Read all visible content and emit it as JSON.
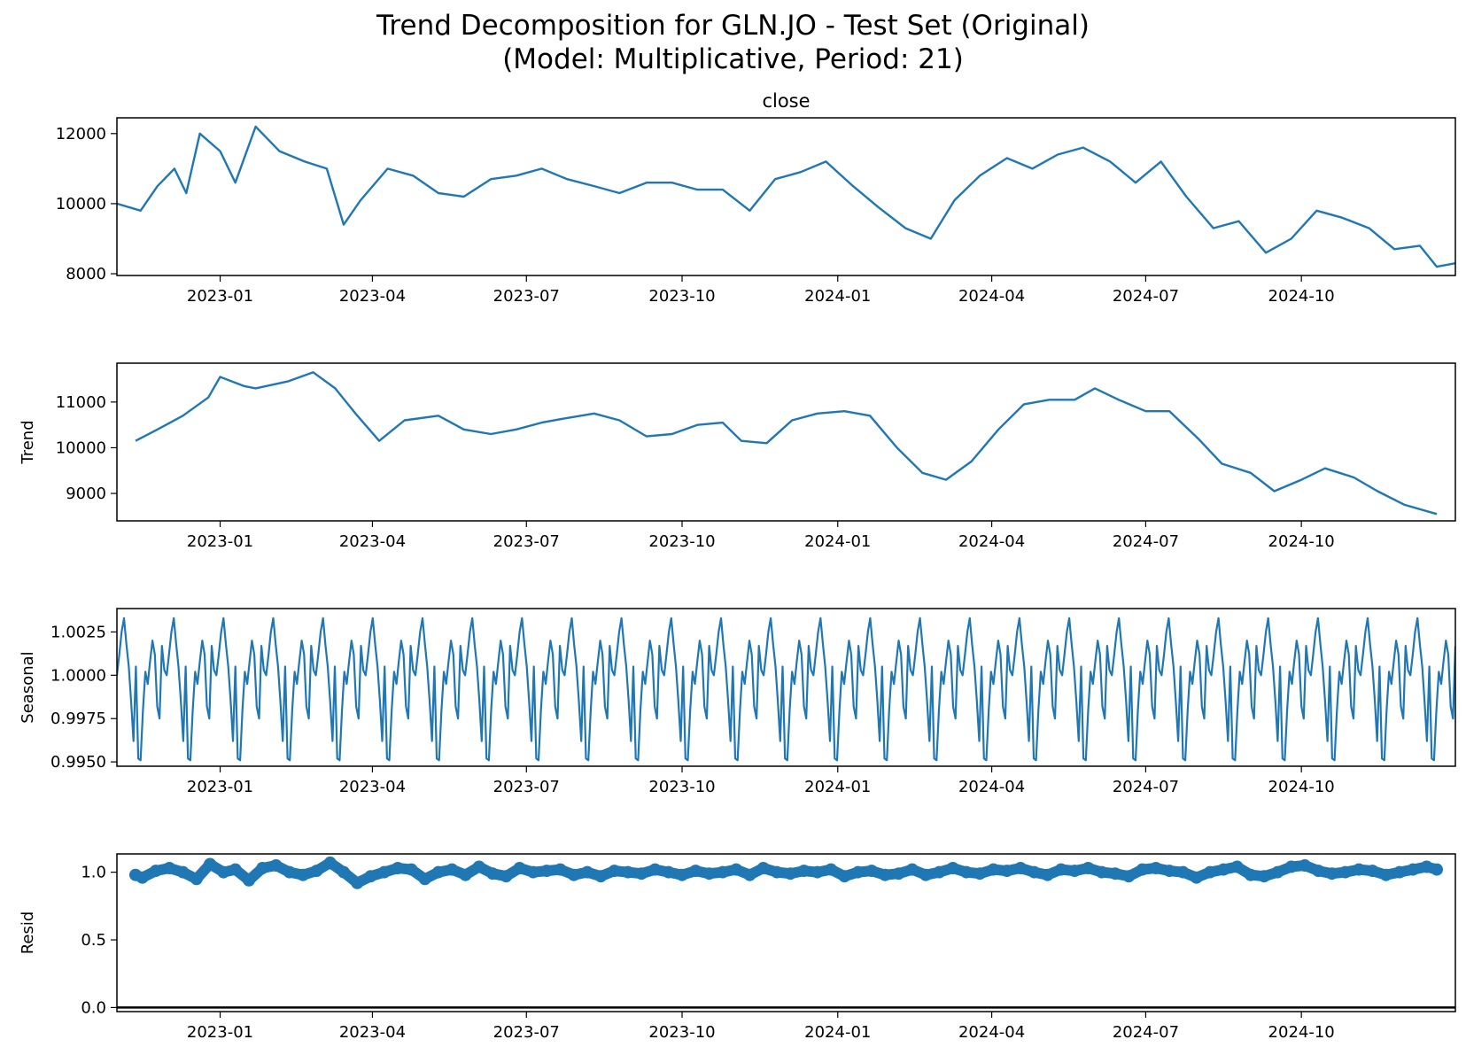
{
  "figure": {
    "title_line1": "Trend Decomposition for GLN.JO - Test Set (Original)",
    "title_line2": "(Model: Multiplicative, Period: 21)"
  },
  "colors": {
    "series": "#1f77b4",
    "axes": "#000000",
    "zero_line": "#000000"
  },
  "x_axis": {
    "start": "2022-11-01",
    "end": "2024-12-31",
    "ticks": [
      {
        "date": "2023-01-01",
        "label": "2023-01"
      },
      {
        "date": "2023-04-01",
        "label": "2023-04"
      },
      {
        "date": "2023-07-01",
        "label": "2023-07"
      },
      {
        "date": "2023-10-01",
        "label": "2023-10"
      },
      {
        "date": "2024-01-01",
        "label": "2024-01"
      },
      {
        "date": "2024-04-01",
        "label": "2024-04"
      },
      {
        "date": "2024-07-01",
        "label": "2024-07"
      },
      {
        "date": "2024-10-01",
        "label": "2024-10"
      }
    ]
  },
  "chart_data": [
    {
      "type": "line",
      "title": "close",
      "ylabel": "",
      "ylim": [
        7950,
        12450
      ],
      "yticks": [
        8000,
        10000,
        12000
      ],
      "x": [
        "2022-11-01",
        "2022-11-15",
        "2022-11-25",
        "2022-12-05",
        "2022-12-12",
        "2022-12-20",
        "2023-01-01",
        "2023-01-10",
        "2023-01-22",
        "2023-02-05",
        "2023-02-20",
        "2023-03-05",
        "2023-03-15",
        "2023-03-25",
        "2023-04-10",
        "2023-04-25",
        "2023-05-10",
        "2023-05-25",
        "2023-06-10",
        "2023-06-25",
        "2023-07-10",
        "2023-07-25",
        "2023-08-10",
        "2023-08-25",
        "2023-09-10",
        "2023-09-25",
        "2023-10-10",
        "2023-10-25",
        "2023-11-10",
        "2023-11-25",
        "2023-12-10",
        "2023-12-25",
        "2024-01-10",
        "2024-01-25",
        "2024-02-10",
        "2024-02-25",
        "2024-03-10",
        "2024-03-25",
        "2024-04-10",
        "2024-04-25",
        "2024-05-10",
        "2024-05-25",
        "2024-06-10",
        "2024-06-25",
        "2024-07-10",
        "2024-07-25",
        "2024-08-10",
        "2024-08-25",
        "2024-09-10",
        "2024-09-25",
        "2024-10-10",
        "2024-10-25",
        "2024-11-10",
        "2024-11-25",
        "2024-12-10",
        "2024-12-20",
        "2024-12-31"
      ],
      "values": [
        10000,
        9800,
        10500,
        11000,
        10300,
        12000,
        11500,
        10600,
        12200,
        11500,
        11200,
        11000,
        9400,
        10100,
        11000,
        10800,
        10300,
        10200,
        10700,
        10800,
        11000,
        10700,
        10500,
        10300,
        10600,
        10600,
        10400,
        10400,
        9800,
        10700,
        10900,
        11200,
        10500,
        9900,
        9300,
        9000,
        10100,
        10800,
        11300,
        11000,
        11400,
        11600,
        11200,
        10600,
        11200,
        10200,
        9300,
        9500,
        8600,
        9000,
        9800,
        9600,
        9300,
        8700,
        8800,
        8200,
        8300
      ]
    },
    {
      "type": "line",
      "title": "",
      "ylabel": "Trend",
      "ylim": [
        8400,
        11850
      ],
      "yticks": [
        9000,
        10000,
        11000
      ],
      "x": [
        "2022-11-12",
        "2022-11-25",
        "2022-12-10",
        "2022-12-25",
        "2023-01-01",
        "2023-01-15",
        "2023-01-22",
        "2023-02-10",
        "2023-02-25",
        "2023-03-10",
        "2023-03-22",
        "2023-04-05",
        "2023-04-20",
        "2023-05-10",
        "2023-05-25",
        "2023-06-10",
        "2023-06-25",
        "2023-07-10",
        "2023-07-25",
        "2023-08-10",
        "2023-08-25",
        "2023-09-10",
        "2023-09-25",
        "2023-10-10",
        "2023-10-25",
        "2023-11-05",
        "2023-11-20",
        "2023-12-05",
        "2023-12-20",
        "2024-01-05",
        "2024-01-20",
        "2024-02-05",
        "2024-02-20",
        "2024-03-05",
        "2024-03-20",
        "2024-04-05",
        "2024-04-20",
        "2024-05-05",
        "2024-05-20",
        "2024-06-01",
        "2024-06-15",
        "2024-07-01",
        "2024-07-15",
        "2024-08-01",
        "2024-08-15",
        "2024-09-01",
        "2024-09-15",
        "2024-10-01",
        "2024-10-15",
        "2024-11-01",
        "2024-11-15",
        "2024-12-01",
        "2024-12-20"
      ],
      "values": [
        10150,
        10400,
        10700,
        11100,
        11550,
        11350,
        11300,
        11450,
        11650,
        11300,
        10750,
        10150,
        10600,
        10700,
        10400,
        10300,
        10400,
        10550,
        10650,
        10750,
        10600,
        10250,
        10300,
        10500,
        10550,
        10150,
        10100,
        10600,
        10750,
        10800,
        10700,
        10000,
        9450,
        9300,
        9700,
        10400,
        10950,
        11050,
        11050,
        11300,
        11050,
        10800,
        10800,
        10200,
        9650,
        9450,
        9050,
        9300,
        9550,
        9350,
        9050,
        8750,
        8550
      ]
    },
    {
      "type": "line",
      "title": "",
      "ylabel": "Seasonal",
      "ylim": [
        0.99475,
        1.00385
      ],
      "yticks": [
        0.995,
        0.9975,
        1.0,
        1.0025
      ],
      "ytick_labels": [
        "0.9950",
        "0.9975",
        "1.0000",
        "1.0025"
      ],
      "period": 21,
      "start": "2022-11-01",
      "end": "2024-12-31",
      "step_days": 1.4,
      "pattern": [
        1.0,
        1.0012,
        1.0025,
        1.0033,
        1.0018,
        1.0005,
        0.9985,
        0.9962,
        1.0005,
        0.9952,
        0.9951,
        0.998,
        1.0002,
        0.9995,
        1.0008,
        1.002,
        1.0012,
        0.9982,
        0.9975,
        1.0017,
        1.0003
      ]
    },
    {
      "type": "scatter",
      "title": "",
      "ylabel": "Resid",
      "ylim": [
        -0.03,
        1.135
      ],
      "yticks": [
        0.0,
        0.5,
        1.0
      ],
      "ytick_labels": [
        "0.0",
        "0.5",
        "1.0"
      ],
      "zero_line": 0.0,
      "x": [
        "2022-11-12",
        "2022-11-16",
        "2022-11-24",
        "2022-12-02",
        "2022-12-10",
        "2022-12-18",
        "2022-12-26",
        "2023-01-03",
        "2023-01-10",
        "2023-01-18",
        "2023-01-26",
        "2023-02-03",
        "2023-02-11",
        "2023-02-19",
        "2023-02-27",
        "2023-03-07",
        "2023-03-15",
        "2023-03-23",
        "2023-03-31",
        "2023-04-08",
        "2023-04-16",
        "2023-04-24",
        "2023-05-02",
        "2023-05-10",
        "2023-05-18",
        "2023-05-26",
        "2023-06-03",
        "2023-06-11",
        "2023-06-19",
        "2023-06-27",
        "2023-07-05",
        "2023-07-13",
        "2023-07-21",
        "2023-07-29",
        "2023-08-06",
        "2023-08-14",
        "2023-08-22",
        "2023-08-30",
        "2023-09-07",
        "2023-09-15",
        "2023-09-23",
        "2023-10-01",
        "2023-10-09",
        "2023-10-17",
        "2023-10-25",
        "2023-11-02",
        "2023-11-10",
        "2023-11-18",
        "2023-11-26",
        "2023-12-04",
        "2023-12-12",
        "2023-12-20",
        "2023-12-28",
        "2024-01-05",
        "2024-01-13",
        "2024-01-21",
        "2024-01-29",
        "2024-02-06",
        "2024-02-14",
        "2024-02-22",
        "2024-03-01",
        "2024-03-09",
        "2024-03-17",
        "2024-03-25",
        "2024-04-02",
        "2024-04-10",
        "2024-04-18",
        "2024-04-26",
        "2024-05-04",
        "2024-05-12",
        "2024-05-20",
        "2024-05-28",
        "2024-06-05",
        "2024-06-13",
        "2024-06-21",
        "2024-06-29",
        "2024-07-07",
        "2024-07-15",
        "2024-07-23",
        "2024-07-31",
        "2024-08-08",
        "2024-08-16",
        "2024-08-24",
        "2024-09-01",
        "2024-09-09",
        "2024-09-17",
        "2024-09-25",
        "2024-10-03",
        "2024-10-11",
        "2024-10-19",
        "2024-10-27",
        "2024-11-04",
        "2024-11-12",
        "2024-11-20",
        "2024-11-28",
        "2024-12-06",
        "2024-12-14",
        "2024-12-20"
      ],
      "values": [
        0.98,
        0.96,
        1.01,
        1.03,
        1.0,
        0.95,
        1.06,
        1.0,
        1.02,
        0.94,
        1.03,
        1.05,
        1.0,
        0.98,
        1.01,
        1.07,
        1.0,
        0.92,
        0.97,
        1.0,
        1.03,
        1.02,
        0.95,
        1.0,
        1.02,
        0.98,
        1.04,
        0.99,
        0.97,
        1.03,
        1.0,
        1.01,
        1.02,
        0.98,
        1.0,
        0.97,
        1.01,
        1.0,
        0.99,
        1.02,
        1.0,
        0.98,
        1.01,
        0.99,
        1.0,
        1.02,
        0.98,
        1.03,
        1.0,
        0.99,
        1.01,
        1.0,
        1.02,
        0.97,
        1.0,
        1.01,
        0.98,
        0.99,
        1.02,
        0.98,
        1.0,
        1.03,
        1.0,
        0.99,
        1.02,
        1.01,
        1.03,
        1.0,
        0.98,
        1.02,
        1.01,
        1.03,
        1.0,
        0.99,
        0.97,
        1.02,
        1.03,
        1.01,
        1.0,
        0.96,
        1.0,
        1.02,
        1.04,
        0.98,
        0.97,
        1.0,
        1.04,
        1.05,
        1.01,
        0.99,
        1.0,
        1.02,
        1.01,
        0.98,
        1.0,
        1.02,
        1.04,
        1.02
      ]
    }
  ]
}
